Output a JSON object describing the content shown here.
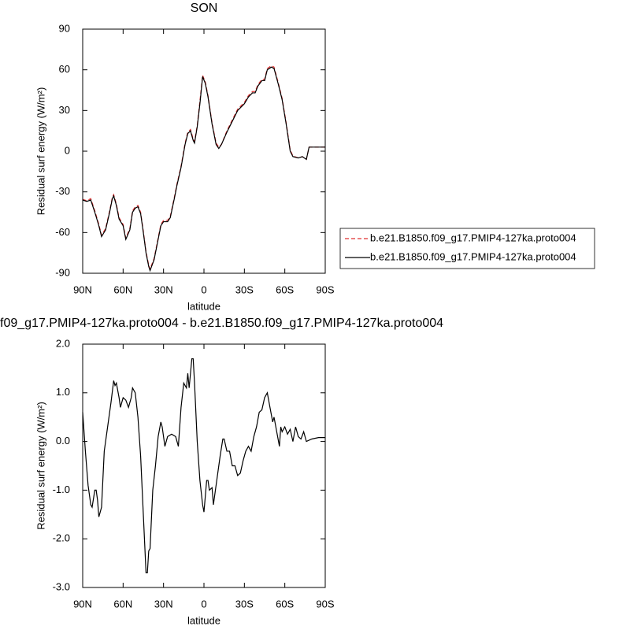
{
  "chart_data": [
    {
      "type": "line",
      "title": "SON",
      "x_label": "latitude",
      "y_label": "Residual surf energy (W/m²)",
      "x": [
        90,
        87,
        84,
        81,
        78,
        76,
        73,
        70,
        68,
        67,
        65,
        63,
        60,
        58,
        55,
        53,
        51,
        49,
        47,
        45,
        43,
        41,
        40,
        37,
        35,
        32,
        30,
        27,
        25,
        22,
        20,
        17,
        14,
        12,
        10,
        8,
        7,
        5,
        3,
        1,
        -1,
        -3,
        -6,
        -9,
        -11,
        -13,
        -17,
        -20,
        -25,
        -30,
        -33,
        -36,
        -38,
        -40,
        -43,
        -45,
        -47,
        -50,
        -52,
        -55,
        -58,
        -61,
        -64,
        -66,
        -70,
        -73,
        -76,
        -78,
        -80,
        -85,
        -90
      ],
      "series": [
        {
          "name": "b.e21.B1850.f09_g17.PMIP4-127ka.proto004",
          "color": "#e03030",
          "style": "dashed",
          "values": [
            -35.5,
            -36.5,
            -35,
            -44,
            -54,
            -62,
            -57,
            -44,
            -34,
            -32,
            -39,
            -49,
            -54,
            -64,
            -57,
            -44,
            -41,
            -40,
            -45,
            -59,
            -74,
            -84,
            -87,
            -79,
            -69,
            -54,
            -51,
            -51,
            -48,
            -34,
            -24,
            -11,
            6,
            14,
            16,
            9,
            7,
            19,
            37,
            56,
            51,
            41,
            21,
            6,
            3,
            5,
            15,
            21,
            31,
            36,
            41,
            44,
            44,
            49,
            53,
            53,
            61,
            63,
            62,
            51,
            39,
            21,
            1,
            -3.5,
            -5,
            -4,
            -6,
            3,
            3,
            3,
            3
          ]
        },
        {
          "name": "b.e21.B1850.f09_g17.PMIP4-127ka.proto004",
          "color": "#000000",
          "style": "solid",
          "values": [
            -36,
            -37,
            -36,
            -45,
            -55,
            -63,
            -58,
            -45,
            -35,
            -33,
            -40,
            -50,
            -55,
            -65,
            -58,
            -45,
            -42,
            -41,
            -46,
            -60,
            -75,
            -85,
            -88,
            -80,
            -70,
            -55,
            -52,
            -52,
            -49,
            -35,
            -25,
            -12,
            5,
            13,
            15,
            8,
            6,
            18,
            35,
            55,
            50,
            40,
            20,
            5,
            2,
            5,
            14,
            20,
            30,
            35,
            40,
            43,
            43,
            48,
            52,
            52,
            60,
            62,
            61,
            50,
            38,
            20,
            0,
            -4,
            -5,
            -4,
            -6,
            3,
            3,
            3,
            3
          ]
        }
      ],
      "xlim": [
        90,
        -90
      ],
      "ylim": [
        -90,
        90
      ],
      "xticks": [
        {
          "value": 90,
          "label": "90N"
        },
        {
          "value": 60,
          "label": "60N"
        },
        {
          "value": 30,
          "label": "30N"
        },
        0,
        {
          "value": -30,
          "label": "30S"
        },
        {
          "value": -60,
          "label": "60S"
        },
        {
          "value": -90,
          "label": "90S"
        }
      ],
      "yticks": [
        -90,
        -60,
        -30,
        0,
        30,
        60,
        90
      ],
      "legend": "right"
    },
    {
      "type": "line",
      "title": "f09_g17.PMIP4-127ka.proto004 - b.e21.B1850.f09_g17.PMIP4-127ka.proto004",
      "x_label": "latitude",
      "y_label": "Residual surf energy (W/m²)",
      "x": [
        90,
        88,
        86,
        84,
        83,
        81,
        80,
        79,
        78,
        76,
        74,
        72,
        71,
        69,
        67,
        66,
        65,
        63,
        62,
        60,
        58,
        56,
        54,
        53,
        51,
        49,
        47,
        45,
        43,
        42,
        41,
        40,
        38,
        36,
        34,
        32,
        31,
        29,
        27,
        24,
        21,
        19,
        17,
        15,
        13,
        12,
        11,
        9,
        8,
        7,
        5,
        3,
        1,
        0,
        -2,
        -3,
        -4,
        -6,
        -7,
        -9,
        -12,
        -14,
        -15,
        -17,
        -19,
        -21,
        -23,
        -25,
        -27,
        -29,
        -31,
        -33,
        -35,
        -37,
        -39,
        -41,
        -43,
        -45,
        -47,
        -49,
        -51,
        -52,
        -54,
        -56,
        -57,
        -58,
        -60,
        -62,
        -64,
        -66,
        -68,
        -70,
        -72,
        -74,
        -76,
        -80,
        -85,
        -90
      ],
      "series": [
        {
          "color": "#000000",
          "style": "solid",
          "values": [
            0.6,
            -0.2,
            -0.9,
            -1.3,
            -1.35,
            -1.0,
            -1.0,
            -1.2,
            -1.55,
            -1.35,
            -0.2,
            0.2,
            0.4,
            0.8,
            1.25,
            1.15,
            1.2,
            0.9,
            0.7,
            0.9,
            0.85,
            0.7,
            0.9,
            1.1,
            1.0,
            0.5,
            -0.3,
            -1.5,
            -2.7,
            -2.7,
            -2.25,
            -2.2,
            -1.0,
            -0.5,
            0.1,
            0.4,
            0.3,
            -0.1,
            0.1,
            0.15,
            0.1,
            -0.1,
            0.7,
            1.2,
            1.1,
            1.4,
            1.1,
            1.7,
            1.7,
            1.2,
            0.0,
            -0.8,
            -1.3,
            -1.45,
            -0.8,
            -0.8,
            -1.0,
            -0.95,
            -1.3,
            -0.9,
            -0.3,
            0.05,
            0.05,
            -0.2,
            -0.2,
            -0.5,
            -0.5,
            -0.7,
            -0.65,
            -0.4,
            -0.2,
            -0.1,
            -0.2,
            0.1,
            0.3,
            0.6,
            0.65,
            0.9,
            1.0,
            0.7,
            0.4,
            0.5,
            0.2,
            -0.1,
            0.3,
            0.2,
            0.3,
            0.15,
            0.25,
            0.0,
            0.3,
            0.1,
            0.05,
            0.2,
            0.0,
            0.05,
            0.08,
            0.08
          ]
        }
      ],
      "xlim": [
        90,
        -90
      ],
      "ylim": [
        -3,
        2
      ],
      "xticks": [
        {
          "value": 90,
          "label": "90N"
        },
        {
          "value": 60,
          "label": "60N"
        },
        {
          "value": 30,
          "label": "30N"
        },
        0,
        {
          "value": -30,
          "label": "30S"
        },
        {
          "value": -60,
          "label": "60S"
        },
        {
          "value": -90,
          "label": "90S"
        }
      ],
      "yticks": [
        {
          "value": -3,
          "label": "-3.0"
        },
        {
          "value": -2,
          "label": "-2.0"
        },
        {
          "value": -1,
          "label": "-1.0"
        },
        {
          "value": 0,
          "label": "0.0"
        },
        {
          "value": 1,
          "label": "1.0"
        },
        {
          "value": 2,
          "label": "2.0"
        }
      ]
    }
  ]
}
